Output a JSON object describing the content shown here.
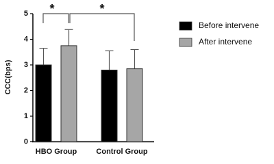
{
  "chart_data": {
    "type": "bar",
    "y_label": "CCC(bps)",
    "categories": [
      "HBO Group",
      "Control Group"
    ],
    "series": [
      {
        "name": "Before intervene",
        "color": "#000000",
        "values": [
          3.0,
          2.8
        ],
        "errors": [
          0.65,
          0.75
        ]
      },
      {
        "name": "After intervene",
        "color": "#a6a6a6",
        "values": [
          3.75,
          2.85
        ],
        "errors": [
          0.63,
          0.75
        ]
      }
    ],
    "ylim": [
      0,
      5
    ],
    "yticks": [
      0,
      1,
      2,
      3,
      4,
      5
    ],
    "annotations": [
      {
        "text": "*"
      },
      {
        "text": "*"
      }
    ]
  }
}
